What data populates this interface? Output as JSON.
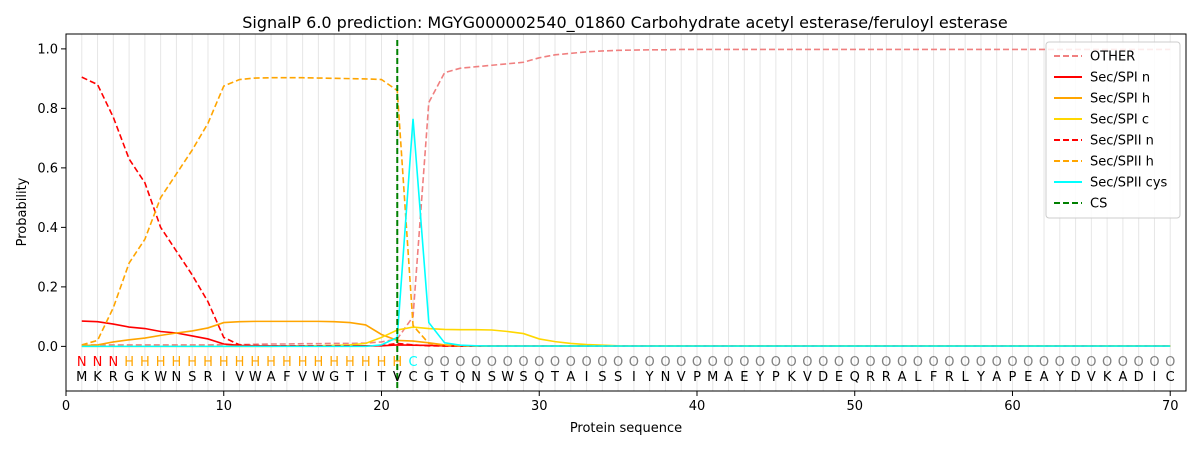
{
  "chart_data": {
    "type": "line",
    "title": "SignalP 6.0 prediction: MGYG000002540_01860 Carbohydrate acetyl esterase/feruloyl esterase",
    "xlabel": "Protein sequence",
    "ylabel": "Probability",
    "xlim": [
      0,
      71
    ],
    "ylim": [
      -0.15,
      1.05
    ],
    "xticks": [
      0,
      10,
      20,
      30,
      40,
      50,
      60,
      70
    ],
    "yticks": [
      0.0,
      0.2,
      0.4,
      0.6,
      0.8,
      1.0
    ],
    "legend_position": "top-right",
    "sequence": [
      "M",
      "K",
      "R",
      "G",
      "K",
      "W",
      "N",
      "S",
      "R",
      "I",
      "V",
      "W",
      "A",
      "F",
      "V",
      "W",
      "G",
      "T",
      "I",
      "T",
      "V",
      "C",
      "G",
      "T",
      "Q",
      "N",
      "S",
      "W",
      "S",
      "Q",
      "T",
      "A",
      "I",
      "S",
      "S",
      "I",
      "Y",
      "N",
      "V",
      "P",
      "M",
      "A",
      "E",
      "Y",
      "P",
      "K",
      "V",
      "D",
      "E",
      "Q",
      "R",
      "R",
      "A",
      "L",
      "F",
      "R",
      "L",
      "Y",
      "A",
      "P",
      "E",
      "A",
      "Y",
      "D",
      "V",
      "K",
      "A",
      "D",
      "I",
      "C"
    ],
    "region_labels": [
      "N",
      "N",
      "N",
      "H",
      "H",
      "H",
      "H",
      "H",
      "H",
      "H",
      "H",
      "H",
      "H",
      "H",
      "H",
      "H",
      "H",
      "H",
      "H",
      "H",
      "H",
      "C",
      "O",
      "O",
      "O",
      "O",
      "O",
      "O",
      "O",
      "O",
      "O",
      "O",
      "O",
      "O",
      "O",
      "O",
      "O",
      "O",
      "O",
      "O",
      "O",
      "O",
      "O",
      "O",
      "O",
      "O",
      "O",
      "O",
      "O",
      "O",
      "O",
      "O",
      "O",
      "O",
      "O",
      "O",
      "O",
      "O",
      "O",
      "O",
      "O",
      "O",
      "O",
      "O",
      "O",
      "O",
      "O",
      "O",
      "O",
      "O"
    ],
    "region_colors": {
      "N": "#ff0000",
      "H": "#ffa500",
      "C": "#00ffff",
      "O": "#808080"
    },
    "cleavage_site": 21,
    "series": [
      {
        "name": "OTHER",
        "color": "#f08080",
        "dash": "dashed",
        "values": [
          0.005,
          0.005,
          0.005,
          0.005,
          0.005,
          0.005,
          0.005,
          0.005,
          0.005,
          0.006,
          0.006,
          0.007,
          0.008,
          0.008,
          0.009,
          0.009,
          0.01,
          0.01,
          0.011,
          0.015,
          0.025,
          0.1,
          0.82,
          0.92,
          0.935,
          0.94,
          0.945,
          0.95,
          0.955,
          0.97,
          0.98,
          0.985,
          0.99,
          0.993,
          0.995,
          0.996,
          0.997,
          0.997,
          0.998,
          0.998,
          0.998,
          0.998,
          0.998,
          0.998,
          0.998,
          0.998,
          0.998,
          0.998,
          0.998,
          0.998,
          0.998,
          0.998,
          0.998,
          0.998,
          0.998,
          0.998,
          0.998,
          0.998,
          0.998,
          0.998,
          0.998,
          0.998,
          0.998,
          0.998,
          0.998,
          0.998,
          0.998,
          0.998,
          0.998,
          0.998
        ]
      },
      {
        "name": "Sec/SPI n",
        "color": "#ff0000",
        "dash": "solid",
        "values": [
          0.085,
          0.083,
          0.075,
          0.065,
          0.06,
          0.05,
          0.045,
          0.035,
          0.025,
          0.008,
          0.003,
          0.002,
          0.002,
          0.002,
          0.002,
          0.002,
          0.002,
          0.002,
          0.002,
          0.002,
          0.005,
          0.004,
          0.003,
          0.002,
          0.001,
          0.001,
          0.001,
          0.001,
          0.001,
          0.001,
          0.001,
          0.001,
          0.001,
          0.001,
          0.001,
          0.001,
          0.001,
          0.001,
          0.001,
          0.001,
          0.001,
          0.001,
          0.001,
          0.001,
          0.001,
          0.001,
          0.001,
          0.001,
          0.001,
          0.001,
          0.001,
          0.001,
          0.001,
          0.001,
          0.001,
          0.001,
          0.001,
          0.001,
          0.001,
          0.001,
          0.001,
          0.001,
          0.001,
          0.001,
          0.001,
          0.001,
          0.001,
          0.001,
          0.001,
          0.001
        ]
      },
      {
        "name": "Sec/SPI h",
        "color": "#ffa500",
        "dash": "solid",
        "values": [
          0.002,
          0.005,
          0.015,
          0.022,
          0.028,
          0.037,
          0.045,
          0.052,
          0.062,
          0.08,
          0.083,
          0.084,
          0.084,
          0.084,
          0.084,
          0.084,
          0.083,
          0.08,
          0.072,
          0.04,
          0.02,
          0.018,
          0.012,
          0.005,
          0.002,
          0.001,
          0.001,
          0.001,
          0.001,
          0.001,
          0.001,
          0.001,
          0.001,
          0.001,
          0.001,
          0.001,
          0.001,
          0.001,
          0.001,
          0.001,
          0.001,
          0.001,
          0.001,
          0.001,
          0.001,
          0.001,
          0.001,
          0.001,
          0.001,
          0.001,
          0.001,
          0.001,
          0.001,
          0.001,
          0.001,
          0.001,
          0.001,
          0.001,
          0.001,
          0.001,
          0.001,
          0.001,
          0.001,
          0.001,
          0.001,
          0.001,
          0.001,
          0.001,
          0.001,
          0.001
        ]
      },
      {
        "name": "Sec/SPI c",
        "color": "#ffd700",
        "dash": "solid",
        "values": [
          0.0,
          0.0,
          0.0,
          0.0,
          0.0,
          0.0,
          0.0,
          0.0,
          0.0,
          0.0,
          0.0,
          0.0,
          0.0,
          0.001,
          0.001,
          0.002,
          0.003,
          0.005,
          0.01,
          0.03,
          0.055,
          0.065,
          0.06,
          0.057,
          0.056,
          0.056,
          0.055,
          0.05,
          0.043,
          0.025,
          0.016,
          0.01,
          0.006,
          0.004,
          0.002,
          0.001,
          0.001,
          0.001,
          0.001,
          0.001,
          0.001,
          0.001,
          0.001,
          0.001,
          0.001,
          0.001,
          0.001,
          0.001,
          0.001,
          0.001,
          0.001,
          0.001,
          0.001,
          0.001,
          0.001,
          0.001,
          0.001,
          0.001,
          0.001,
          0.001,
          0.001,
          0.001,
          0.001,
          0.001,
          0.001,
          0.001,
          0.001,
          0.001,
          0.001,
          0.001
        ]
      },
      {
        "name": "Sec/SPII n",
        "color": "#ff0000",
        "dash": "dashed",
        "values": [
          0.905,
          0.88,
          0.77,
          0.63,
          0.55,
          0.4,
          0.32,
          0.24,
          0.15,
          0.03,
          0.005,
          0.003,
          0.002,
          0.002,
          0.002,
          0.002,
          0.002,
          0.002,
          0.002,
          0.002,
          0.01,
          0.005,
          0.002,
          0.001,
          0.001,
          0.001,
          0.001,
          0.001,
          0.001,
          0.001,
          0.001,
          0.001,
          0.001,
          0.001,
          0.001,
          0.001,
          0.001,
          0.001,
          0.001,
          0.001,
          0.001,
          0.001,
          0.001,
          0.001,
          0.001,
          0.001,
          0.001,
          0.001,
          0.001,
          0.001,
          0.001,
          0.001,
          0.001,
          0.001,
          0.001,
          0.001,
          0.001,
          0.001,
          0.001,
          0.001,
          0.001,
          0.001,
          0.001,
          0.001,
          0.001,
          0.001,
          0.001,
          0.001,
          0.001,
          0.001
        ]
      },
      {
        "name": "Sec/SPII h",
        "color": "#ffa500",
        "dash": "dashed",
        "values": [
          0.005,
          0.02,
          0.13,
          0.28,
          0.36,
          0.5,
          0.58,
          0.66,
          0.75,
          0.875,
          0.897,
          0.902,
          0.903,
          0.903,
          0.903,
          0.902,
          0.901,
          0.9,
          0.899,
          0.897,
          0.86,
          0.07,
          0.01,
          0.004,
          0.002,
          0.001,
          0.001,
          0.001,
          0.001,
          0.001,
          0.001,
          0.001,
          0.001,
          0.001,
          0.001,
          0.001,
          0.001,
          0.001,
          0.001,
          0.001,
          0.001,
          0.001,
          0.001,
          0.001,
          0.001,
          0.001,
          0.001,
          0.001,
          0.001,
          0.001,
          0.001,
          0.001,
          0.001,
          0.001,
          0.001,
          0.001,
          0.001,
          0.001,
          0.001,
          0.001,
          0.001,
          0.001,
          0.001,
          0.001,
          0.001,
          0.001,
          0.001,
          0.001,
          0.001,
          0.001
        ]
      },
      {
        "name": "Sec/SPII cys",
        "color": "#00ffff",
        "dash": "solid",
        "values": [
          0.0,
          0.0,
          0.0,
          0.0,
          0.0,
          0.0,
          0.0,
          0.0,
          0.0,
          0.0,
          0.0,
          0.0,
          0.0,
          0.0,
          0.0,
          0.0,
          0.0,
          0.0,
          0.0,
          0.005,
          0.03,
          0.765,
          0.08,
          0.012,
          0.004,
          0.002,
          0.001,
          0.001,
          0.001,
          0.001,
          0.001,
          0.001,
          0.001,
          0.001,
          0.001,
          0.001,
          0.001,
          0.001,
          0.001,
          0.001,
          0.001,
          0.001,
          0.001,
          0.001,
          0.001,
          0.001,
          0.001,
          0.001,
          0.001,
          0.001,
          0.001,
          0.001,
          0.001,
          0.001,
          0.001,
          0.001,
          0.001,
          0.001,
          0.001,
          0.001,
          0.001,
          0.001,
          0.001,
          0.001,
          0.001,
          0.001,
          0.001,
          0.001,
          0.001,
          0.001
        ]
      },
      {
        "name": "CS",
        "color": "#008000",
        "dash": "dashed",
        "values": []
      }
    ]
  }
}
